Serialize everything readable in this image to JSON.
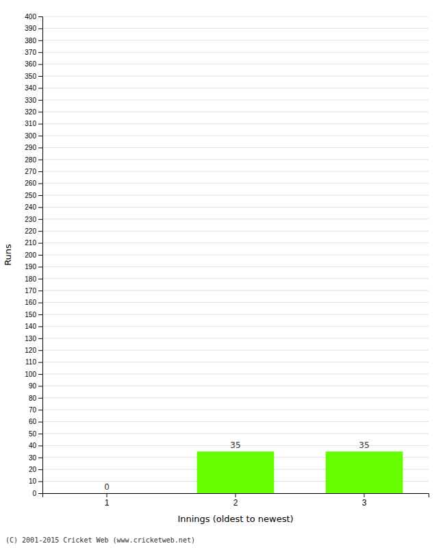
{
  "chart_data": {
    "type": "bar",
    "categories": [
      "1",
      "2",
      "3"
    ],
    "values": [
      0,
      35,
      35
    ],
    "color": "#66ff00",
    "xlabel": "Innings (oldest to newest)",
    "ylabel": "Runs",
    "ylim": [
      0,
      400
    ],
    "yticks": [
      0,
      10,
      20,
      30,
      40,
      50,
      60,
      70,
      80,
      90,
      100,
      110,
      120,
      130,
      140,
      150,
      160,
      170,
      180,
      190,
      200,
      210,
      220,
      230,
      240,
      250,
      260,
      270,
      280,
      290,
      300,
      310,
      320,
      330,
      340,
      350,
      360,
      370,
      380,
      390,
      400
    ],
    "grid": true,
    "data_labels": true,
    "annotations": [
      "(C) 2001-2015 Cricket Web (www.cricketweb.net)"
    ]
  }
}
